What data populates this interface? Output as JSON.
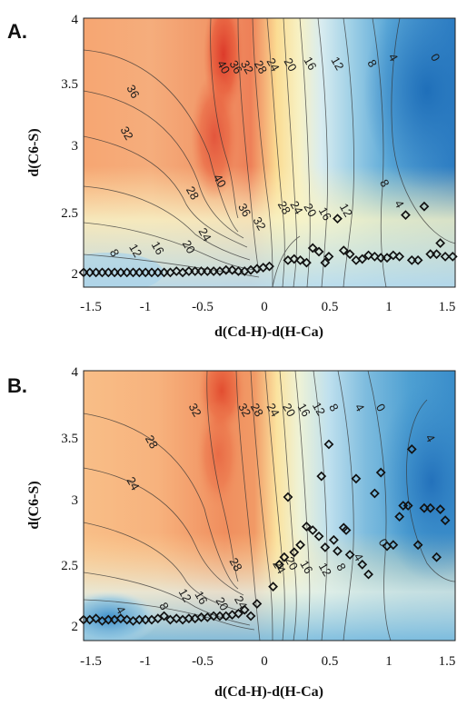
{
  "chart_data": [
    {
      "type": "heatmap",
      "panel_label": "A.",
      "xlabel": "d(Cd-H)-d(H-Ca)",
      "ylabel": "d(C6-S)",
      "xlim": [
        -1.5,
        1.5
      ],
      "ylim": [
        1.8,
        4.0
      ],
      "x_ticks": [
        "-1.5",
        "-1",
        "-0.5",
        "0",
        "0.5",
        "1",
        "1.5"
      ],
      "y_ticks": [
        "2",
        "2.5",
        "3",
        "3.5",
        "4"
      ],
      "contour_labels": [
        {
          "text": "40",
          "x": -0.37,
          "y": 3.6
        },
        {
          "text": "36",
          "x": -0.27,
          "y": 3.6
        },
        {
          "text": "32",
          "x": -0.18,
          "y": 3.6
        },
        {
          "text": "28",
          "x": -0.07,
          "y": 3.6
        },
        {
          "text": "24",
          "x": 0.03,
          "y": 3.62
        },
        {
          "text": "20",
          "x": 0.17,
          "y": 3.62
        },
        {
          "text": "16",
          "x": 0.33,
          "y": 3.63
        },
        {
          "text": "12",
          "x": 0.55,
          "y": 3.63
        },
        {
          "text": "8",
          "x": 0.83,
          "y": 3.63
        },
        {
          "text": "4",
          "x": 1.0,
          "y": 3.68
        },
        {
          "text": "0",
          "x": 1.34,
          "y": 3.68
        },
        {
          "text": "36",
          "x": -1.1,
          "y": 3.4
        },
        {
          "text": "32",
          "x": -1.15,
          "y": 3.06
        },
        {
          "text": "40",
          "x": -0.4,
          "y": 2.67
        },
        {
          "text": "28",
          "x": -0.62,
          "y": 2.57
        },
        {
          "text": "36",
          "x": -0.2,
          "y": 2.43
        },
        {
          "text": "32",
          "x": -0.08,
          "y": 2.32
        },
        {
          "text": "28",
          "x": 0.12,
          "y": 2.45
        },
        {
          "text": "24",
          "x": 0.22,
          "y": 2.45
        },
        {
          "text": "20",
          "x": 0.33,
          "y": 2.43
        },
        {
          "text": "16",
          "x": 0.45,
          "y": 2.4
        },
        {
          "text": "12",
          "x": 0.62,
          "y": 2.43
        },
        {
          "text": "8",
          "x": 0.93,
          "y": 2.65
        },
        {
          "text": "4",
          "x": 1.05,
          "y": 2.48
        },
        {
          "text": "24",
          "x": -0.52,
          "y": 2.23
        },
        {
          "text": "20",
          "x": -0.65,
          "y": 2.13
        },
        {
          "text": "16",
          "x": -0.9,
          "y": 2.12
        },
        {
          "text": "12",
          "x": -1.08,
          "y": 2.1
        },
        {
          "text": "8",
          "x": -1.25,
          "y": 2.08
        }
      ],
      "points": [
        [
          -1.5,
          1.92
        ],
        [
          -1.45,
          1.92
        ],
        [
          -1.4,
          1.92
        ],
        [
          -1.35,
          1.92
        ],
        [
          -1.3,
          1.92
        ],
        [
          -1.25,
          1.92
        ],
        [
          -1.2,
          1.92
        ],
        [
          -1.15,
          1.92
        ],
        [
          -1.1,
          1.92
        ],
        [
          -1.05,
          1.92
        ],
        [
          -1.0,
          1.92
        ],
        [
          -0.95,
          1.92
        ],
        [
          -0.9,
          1.92
        ],
        [
          -0.85,
          1.92
        ],
        [
          -0.8,
          1.92
        ],
        [
          -0.75,
          1.93
        ],
        [
          -0.7,
          1.92
        ],
        [
          -0.65,
          1.93
        ],
        [
          -0.6,
          1.93
        ],
        [
          -0.55,
          1.93
        ],
        [
          -0.5,
          1.93
        ],
        [
          -0.45,
          1.93
        ],
        [
          -0.4,
          1.93
        ],
        [
          -0.35,
          1.94
        ],
        [
          -0.3,
          1.94
        ],
        [
          -0.25,
          1.93
        ],
        [
          -0.2,
          1.93
        ],
        [
          -0.15,
          1.94
        ],
        [
          -0.1,
          1.95
        ],
        [
          -0.05,
          1.96
        ],
        [
          0.0,
          1.97
        ],
        [
          0.15,
          2.02
        ],
        [
          0.2,
          2.03
        ],
        [
          0.25,
          2.02
        ],
        [
          0.3,
          2.0
        ],
        [
          0.35,
          2.12
        ],
        [
          0.4,
          2.09
        ],
        [
          0.45,
          2.0
        ],
        [
          0.48,
          2.05
        ],
        [
          0.55,
          2.36
        ],
        [
          0.6,
          2.1
        ],
        [
          0.65,
          2.07
        ],
        [
          0.7,
          2.02
        ],
        [
          0.75,
          2.03
        ],
        [
          0.8,
          2.06
        ],
        [
          0.85,
          2.05
        ],
        [
          0.9,
          2.04
        ],
        [
          0.95,
          2.04
        ],
        [
          1.0,
          2.06
        ],
        [
          1.05,
          2.05
        ],
        [
          1.1,
          2.39
        ],
        [
          1.15,
          2.02
        ],
        [
          1.2,
          2.02
        ],
        [
          1.25,
          2.46
        ],
        [
          1.3,
          2.07
        ],
        [
          1.35,
          2.07
        ],
        [
          1.38,
          2.16
        ],
        [
          1.42,
          2.05
        ],
        [
          1.48,
          2.05
        ]
      ]
    },
    {
      "type": "heatmap",
      "panel_label": "B.",
      "xlabel": "d(Cd-H)-d(H-Ca)",
      "ylabel": "d(C6-S)",
      "xlim": [
        -1.5,
        1.5
      ],
      "ylim": [
        1.8,
        4.0
      ],
      "x_ticks": [
        "-1.5",
        "-1",
        "-0.5",
        "0",
        "0.5",
        "1",
        "1.5"
      ],
      "y_ticks": [
        "2",
        "2.5",
        "3",
        "3.5",
        "4"
      ],
      "contour_labels": [
        {
          "text": "32",
          "x": -0.6,
          "y": 3.68
        },
        {
          "text": "32",
          "x": -0.2,
          "y": 3.68
        },
        {
          "text": "28",
          "x": -0.1,
          "y": 3.68
        },
        {
          "text": "24",
          "x": 0.03,
          "y": 3.68
        },
        {
          "text": "20",
          "x": 0.16,
          "y": 3.68
        },
        {
          "text": "16",
          "x": 0.28,
          "y": 3.68
        },
        {
          "text": "12",
          "x": 0.4,
          "y": 3.69
        },
        {
          "text": "8",
          "x": 0.52,
          "y": 3.7
        },
        {
          "text": "4",
          "x": 0.73,
          "y": 3.7
        },
        {
          "text": "0",
          "x": 0.9,
          "y": 3.7
        },
        {
          "text": "28",
          "x": -0.95,
          "y": 3.42
        },
        {
          "text": "24",
          "x": -1.1,
          "y": 3.08
        },
        {
          "text": "28",
          "x": -0.27,
          "y": 2.42
        },
        {
          "text": "24",
          "x": 0.08,
          "y": 2.4
        },
        {
          "text": "20",
          "x": 0.18,
          "y": 2.43
        },
        {
          "text": "16",
          "x": 0.3,
          "y": 2.4
        },
        {
          "text": "12",
          "x": 0.45,
          "y": 2.38
        },
        {
          "text": "8",
          "x": 0.58,
          "y": 2.4
        },
        {
          "text": "4",
          "x": 0.72,
          "y": 2.48
        },
        {
          "text": "0",
          "x": 0.92,
          "y": 2.6
        },
        {
          "text": "4",
          "x": 1.3,
          "y": 3.45
        },
        {
          "text": "24",
          "x": -0.23,
          "y": 2.11
        },
        {
          "text": "20",
          "x": -0.38,
          "y": 2.1
        },
        {
          "text": "16",
          "x": -0.55,
          "y": 2.15
        },
        {
          "text": "12",
          "x": -0.68,
          "y": 2.17
        },
        {
          "text": "8",
          "x": -0.85,
          "y": 2.08
        },
        {
          "text": "4",
          "x": -1.2,
          "y": 2.05
        }
      ],
      "points": [
        [
          -1.5,
          1.97
        ],
        [
          -1.45,
          1.97
        ],
        [
          -1.4,
          1.98
        ],
        [
          -1.35,
          1.96
        ],
        [
          -1.3,
          1.97
        ],
        [
          -1.25,
          1.97
        ],
        [
          -1.2,
          1.98
        ],
        [
          -1.15,
          1.97
        ],
        [
          -1.1,
          1.96
        ],
        [
          -1.05,
          1.97
        ],
        [
          -1.0,
          1.97
        ],
        [
          -0.95,
          1.97
        ],
        [
          -0.9,
          1.98
        ],
        [
          -0.85,
          2.0
        ],
        [
          -0.8,
          1.97
        ],
        [
          -0.75,
          1.98
        ],
        [
          -0.7,
          1.97
        ],
        [
          -0.65,
          1.98
        ],
        [
          -0.6,
          1.98
        ],
        [
          -0.55,
          1.99
        ],
        [
          -0.5,
          1.99
        ],
        [
          -0.45,
          2.0
        ],
        [
          -0.4,
          2.0
        ],
        [
          -0.35,
          2.0
        ],
        [
          -0.3,
          2.01
        ],
        [
          -0.25,
          2.02
        ],
        [
          -0.2,
          2.05
        ],
        [
          -0.15,
          2.0
        ],
        [
          -0.1,
          2.1
        ],
        [
          0.03,
          2.24
        ],
        [
          0.08,
          2.42
        ],
        [
          0.12,
          2.48
        ],
        [
          0.15,
          2.97
        ],
        [
          0.2,
          2.52
        ],
        [
          0.25,
          2.58
        ],
        [
          0.3,
          2.73
        ],
        [
          0.35,
          2.7
        ],
        [
          0.4,
          2.65
        ],
        [
          0.42,
          3.14
        ],
        [
          0.45,
          2.56
        ],
        [
          0.48,
          3.4
        ],
        [
          0.52,
          2.62
        ],
        [
          0.55,
          2.53
        ],
        [
          0.6,
          2.72
        ],
        [
          0.62,
          2.7
        ],
        [
          0.65,
          2.5
        ],
        [
          0.7,
          3.12
        ],
        [
          0.75,
          2.42
        ],
        [
          0.8,
          2.34
        ],
        [
          0.85,
          3.0
        ],
        [
          0.9,
          3.17
        ],
        [
          0.95,
          2.57
        ],
        [
          1.0,
          2.58
        ],
        [
          1.05,
          2.81
        ],
        [
          1.08,
          2.9
        ],
        [
          1.12,
          2.9
        ],
        [
          1.15,
          3.36
        ],
        [
          1.2,
          2.58
        ],
        [
          1.25,
          2.88
        ],
        [
          1.3,
          2.88
        ],
        [
          1.35,
          2.48
        ],
        [
          1.38,
          2.87
        ],
        [
          1.42,
          2.78
        ]
      ]
    }
  ]
}
